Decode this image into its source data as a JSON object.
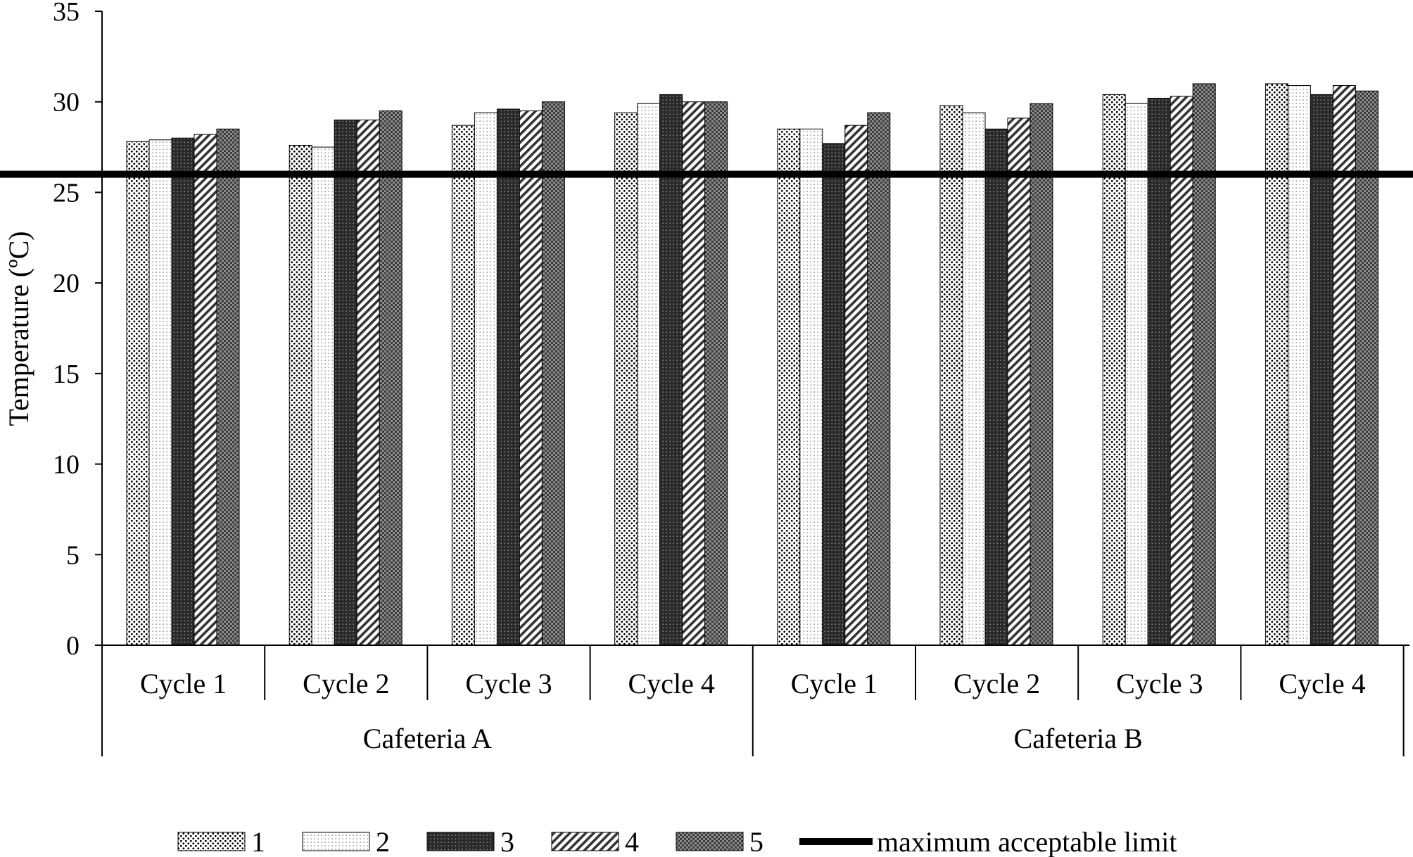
{
  "chart_data": {
    "type": "bar",
    "ylabel": "Temperature (ºC)",
    "ylim": [
      0,
      35
    ],
    "yticks": [
      "0",
      "5",
      "10",
      "15",
      "20",
      "25",
      "30",
      "35"
    ],
    "groups": [
      {
        "label": "Cafeteria A",
        "categories": [
          "Cycle 1",
          "Cycle 2",
          "Cycle 3",
          "Cycle 4"
        ]
      },
      {
        "label": "Cafeteria B",
        "categories": [
          "Cycle 1",
          "Cycle 2",
          "Cycle 3",
          "Cycle 4"
        ]
      }
    ],
    "series": [
      {
        "name": "1",
        "values": [
          27.8,
          27.6,
          28.7,
          29.4,
          28.5,
          29.8,
          30.4,
          31.0
        ]
      },
      {
        "name": "2",
        "values": [
          27.9,
          27.5,
          29.4,
          29.9,
          28.5,
          29.4,
          29.9,
          30.9
        ]
      },
      {
        "name": "3",
        "values": [
          28.0,
          29.0,
          29.6,
          30.4,
          27.7,
          28.5,
          30.2,
          30.4
        ]
      },
      {
        "name": "4",
        "values": [
          28.2,
          29.0,
          29.5,
          30.0,
          28.7,
          29.1,
          30.3,
          30.9
        ]
      },
      {
        "name": "5",
        "values": [
          28.5,
          29.5,
          30.0,
          30.0,
          29.4,
          29.9,
          31.0,
          30.6
        ]
      }
    ],
    "reference_line": {
      "name": "maximum acceptable limit",
      "value": 26
    },
    "grid": false,
    "legend_position": "bottom"
  }
}
